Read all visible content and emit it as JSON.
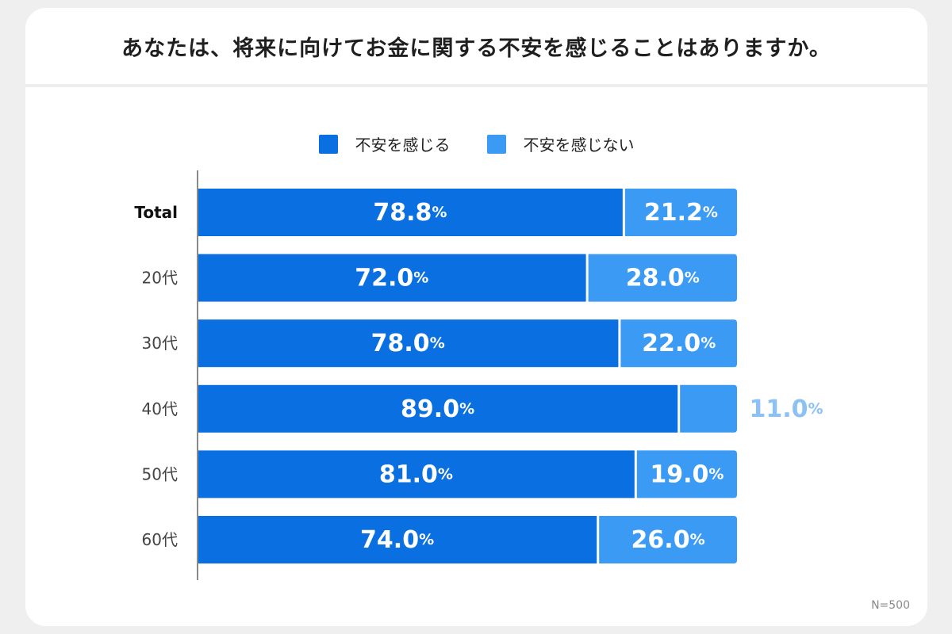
{
  "title": "あなたは、将来に向けてお金に関する不安を感じることはありますか。",
  "note": "N=500",
  "colors": {
    "series1": "#0a6fe1",
    "series2": "#3b9af4",
    "outside_label": "#8cc1f5"
  },
  "chart_data": {
    "type": "bar",
    "orientation": "horizontal",
    "stacked": true,
    "percent": true,
    "title": "あなたは、将来に向けてお金に関する不安を感じることはありますか。",
    "categories": [
      "Total",
      "20代",
      "30代",
      "40代",
      "50代",
      "60代"
    ],
    "series": [
      {
        "name": "不安を感じる",
        "values": [
          78.8,
          72.0,
          78.0,
          89.0,
          81.0,
          74.0
        ]
      },
      {
        "name": "不安を感じない",
        "values": [
          21.2,
          28.0,
          22.0,
          11.0,
          19.0,
          26.0
        ]
      }
    ],
    "xlim": [
      0,
      100
    ],
    "legend": "top-center",
    "grid": false,
    "annotations": [
      "N=500"
    ]
  }
}
